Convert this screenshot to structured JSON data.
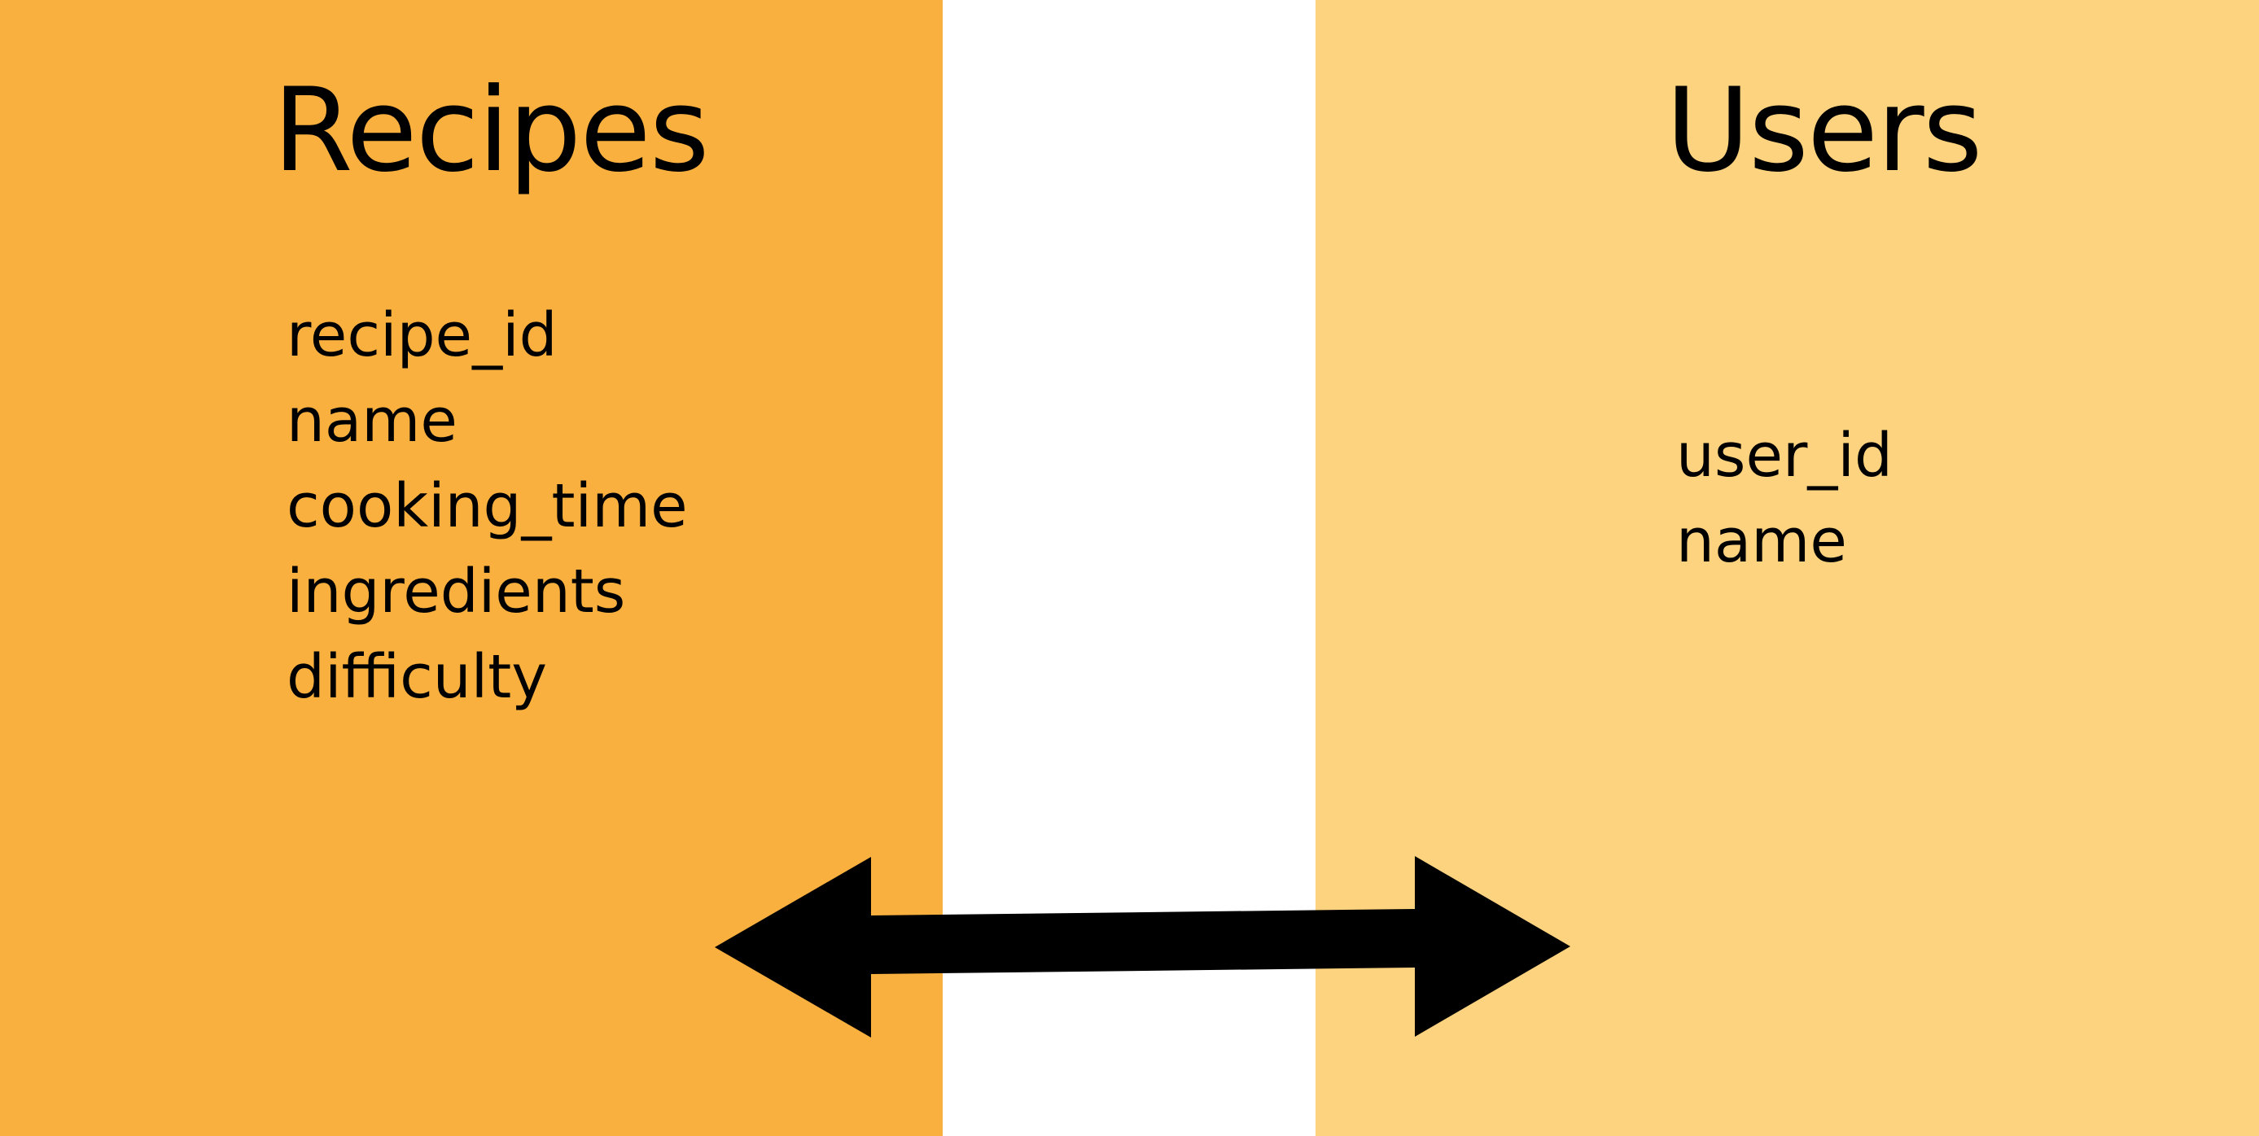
{
  "colors": {
    "left_panel": "#FAB03F",
    "right_panel": "#FED37F",
    "middle": "#FFFFFF",
    "arrow": "#000000",
    "text": "#000000"
  },
  "left_entity": {
    "title": "Recipes",
    "fields": [
      "recipe_id",
      "name",
      "cooking_time",
      "ingredients",
      "difficulty"
    ]
  },
  "right_entity": {
    "title": "Users",
    "fields": [
      "user_id",
      "name"
    ]
  },
  "relationship": {
    "icon": "double-headed-arrow-icon"
  }
}
